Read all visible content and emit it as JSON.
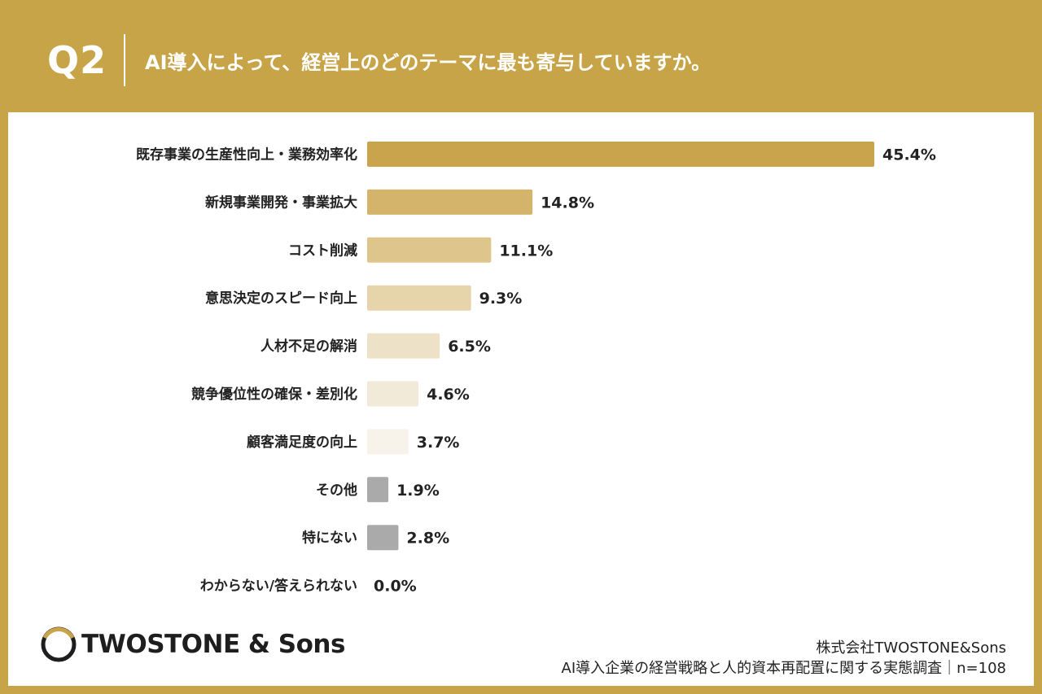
{
  "header": {
    "q_number": "Q2",
    "question": "AI導入によって、経営上のどのテーマに最も寄与していますか。"
  },
  "chart_data": {
    "type": "bar",
    "orientation": "horizontal",
    "title": "AI導入によって、経営上のどのテーマに最も寄与していますか。",
    "unit": "%",
    "categories": [
      "既存事業の生産性向上・業務効率化",
      "新規事業開発・事業拡大",
      "コスト削減",
      "意思決定のスピード向上",
      "人材不足の解消",
      "競争優位性の確保・差別化",
      "顧客満足度の向上",
      "その他",
      "特にない",
      "わからない/答えられない"
    ],
    "values": [
      45.4,
      14.8,
      11.1,
      9.3,
      6.5,
      4.6,
      3.7,
      1.9,
      2.8,
      0.0
    ],
    "value_labels": [
      "45.4%",
      "14.8%",
      "11.1%",
      "9.3%",
      "6.5%",
      "4.6%",
      "3.7%",
      "1.9%",
      "2.8%",
      "0.0%"
    ],
    "bar_colors": [
      "#c9a44c",
      "#d3b46a",
      "#ddc58c",
      "#e6d4ab",
      "#ede2c8",
      "#f2ead9",
      "#f8f3ea",
      "#aaaaaa",
      "#aaaaaa",
      "#aaaaaa"
    ],
    "xlim": [
      0,
      45.4
    ],
    "grid": false,
    "legend": "none"
  },
  "footer": {
    "logo_text": "TWOSTONE & Sons",
    "company": "株式会社TWOSTONE&Sons",
    "survey": "AI導入企業の経営戦略と人的資本再配置に関する実態調査｜n=108"
  },
  "colors": {
    "background": "#c8a448",
    "card": "#ffffff",
    "text": "#222222"
  }
}
